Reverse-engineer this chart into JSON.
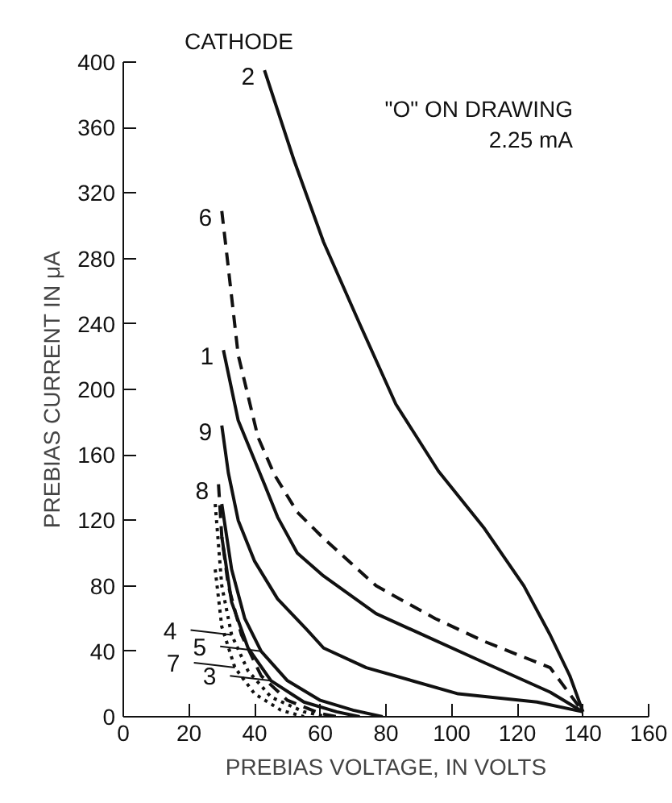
{
  "chart_data": {
    "type": "line",
    "xlabel": "PREBIAS VOLTAGE, IN VOLTS",
    "ylabel": "PREBIAS CURRENT IN μA",
    "xlim": [
      0,
      160
    ],
    "xticks": [
      0,
      20,
      40,
      60,
      80,
      100,
      120,
      140,
      160
    ],
    "ylim": [
      0,
      400
    ],
    "yticks": [
      0,
      40,
      80,
      120,
      160,
      200,
      240,
      280,
      320,
      360,
      400
    ],
    "grid": false,
    "marker": "none",
    "series": [
      {
        "color": "#111111",
        "line_style": "solid",
        "x": [
          43,
          52,
          61,
          72,
          83,
          96,
          110,
          122,
          130,
          136,
          140
        ],
        "values": [
          395,
          340,
          290,
          240,
          191,
          150,
          115,
          80,
          50,
          25,
          3
        ]
      },
      {
        "color": "#111111",
        "line_style": "dashed",
        "x": [
          30,
          31.5,
          35,
          41,
          46,
          53,
          61,
          77,
          95,
          110,
          130,
          140
        ],
        "values": [
          309,
          283,
          221,
          171,
          148,
          125,
          109,
          80,
          60,
          46,
          30,
          3
        ]
      },
      {
        "color": "#111111",
        "line_style": "solid",
        "x": [
          30.5,
          35,
          43,
          47,
          53,
          61,
          77,
          110,
          130,
          140
        ],
        "values": [
          224,
          181,
          142,
          122,
          100,
          86,
          63,
          33,
          15,
          3
        ]
      },
      {
        "color": "#111111",
        "line_style": "solid",
        "x": [
          30,
          32,
          35,
          40,
          47,
          56,
          61,
          74,
          102,
          126,
          140
        ],
        "values": [
          178,
          149,
          120,
          95,
          72,
          53,
          42,
          30,
          14,
          9,
          3
        ]
      },
      {
        "color": "#111111",
        "line_style": "dashed",
        "x": [
          29,
          30,
          32,
          36,
          42,
          50,
          60,
          65
        ],
        "values": [
          142,
          110,
          80,
          50,
          25,
          10,
          2,
          0
        ]
      },
      {
        "color": "#111111",
        "line_style": "dotted",
        "x": [
          28,
          30,
          33,
          38,
          45,
          55,
          62
        ],
        "values": [
          130,
          80,
          50,
          28,
          12,
          3,
          0
        ]
      },
      {
        "color": "#111111",
        "line_style": "solid",
        "x": [
          30,
          33,
          37,
          42,
          50,
          60,
          70,
          79
        ],
        "values": [
          130,
          90,
          60,
          40,
          22,
          10,
          4,
          0
        ]
      },
      {
        "color": "#111111",
        "line_style": "solid",
        "x": [
          30,
          33,
          38,
          45,
          55,
          65,
          72
        ],
        "values": [
          110,
          70,
          42,
          22,
          9,
          3,
          0
        ]
      },
      {
        "color": "#111111",
        "line_style": "dotted",
        "x": [
          28,
          30,
          34,
          40,
          48,
          55
        ],
        "values": [
          90,
          55,
          30,
          14,
          4,
          0
        ]
      }
    ],
    "annotations": [
      "CATHODE",
      "\"O\" ON DRAWING\n2.25 mA",
      {
        "text": "2",
        "x": 43,
        "y": 395
      },
      {
        "text": "6",
        "x": 30,
        "y": 309
      },
      {
        "text": "1",
        "x": 30.5,
        "y": 224
      },
      {
        "text": "9",
        "x": 30,
        "y": 178
      },
      {
        "text": "8",
        "x": 29,
        "y": 142
      },
      {
        "text": "4",
        "x": 33,
        "y": 50
      },
      {
        "text": "5",
        "x": 42,
        "y": 40
      },
      {
        "text": "3",
        "x": 45,
        "y": 22
      },
      {
        "text": "7",
        "x": 34,
        "y": 30
      }
    ]
  }
}
